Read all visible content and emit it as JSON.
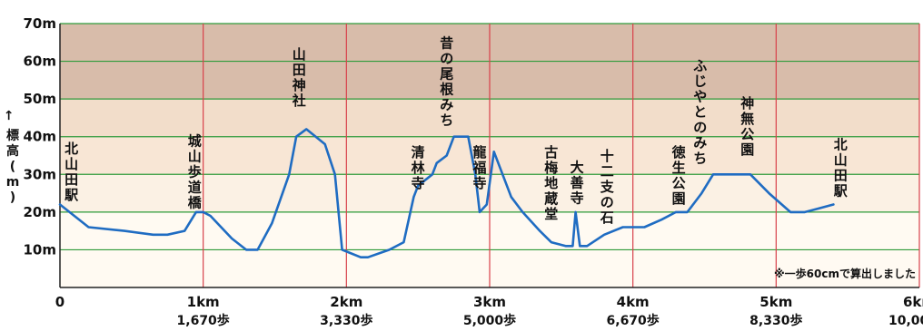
{
  "chart_data": {
    "type": "line",
    "title": "",
    "xlabel": "",
    "ylabel": "標高(m)",
    "ylabel_arrow": "→",
    "xlim": [
      0,
      6
    ],
    "ylim": [
      0,
      70
    ],
    "grid": true,
    "y_ticks": [
      {
        "value": 10,
        "label": "10m"
      },
      {
        "value": 20,
        "label": "20m"
      },
      {
        "value": 30,
        "label": "30m"
      },
      {
        "value": 40,
        "label": "40m"
      },
      {
        "value": 50,
        "label": "50m"
      },
      {
        "value": 60,
        "label": "60m"
      },
      {
        "value": 70,
        "label": "70m"
      }
    ],
    "x_ticks": [
      {
        "value": 0,
        "label": "0",
        "steps": ""
      },
      {
        "value": 1,
        "label": "1km",
        "steps": "1,670歩"
      },
      {
        "value": 2,
        "label": "2km",
        "steps": "3,330歩"
      },
      {
        "value": 3,
        "label": "3km",
        "steps": "5,000歩"
      },
      {
        "value": 4,
        "label": "4km",
        "steps": "6,670歩"
      },
      {
        "value": 5,
        "label": "5km",
        "steps": "8,330歩"
      },
      {
        "value": 6,
        "label": "6km",
        "steps": "10,000歩"
      }
    ],
    "bands": [
      {
        "from": 50,
        "to": 70,
        "color": "#d8bcaa"
      },
      {
        "from": 40,
        "to": 50,
        "color": "#f2ddca"
      },
      {
        "from": 30,
        "to": 40,
        "color": "#f8e6d5"
      },
      {
        "from": 20,
        "to": 30,
        "color": "#fbf1e4"
      },
      {
        "from": 0,
        "to": 20,
        "color": "#fffaf2"
      }
    ],
    "colors": {
      "line": "#1f6cc2",
      "vgrid": "#d8404a",
      "hgrid": "#2e9a3a",
      "axis": "#222222"
    },
    "series": [
      {
        "name": "",
        "x": [
          0,
          0.2,
          0.45,
          0.65,
          0.75,
          0.87,
          0.95,
          1.0,
          1.05,
          1.2,
          1.3,
          1.38,
          1.48,
          1.6,
          1.65,
          1.72,
          1.85,
          1.92,
          1.97,
          2.1,
          2.15,
          2.3,
          2.4,
          2.47,
          2.5,
          2.6,
          2.63,
          2.7,
          2.75,
          2.85,
          2.9,
          2.93,
          2.98,
          3.03,
          3.15,
          3.23,
          3.35,
          3.43,
          3.53,
          3.58,
          3.6,
          3.63,
          3.68,
          3.8,
          3.93,
          4.08,
          4.2,
          4.3,
          4.38,
          4.48,
          4.56,
          4.67,
          4.82,
          4.95,
          5.1,
          5.2,
          5.3,
          5.4
        ],
        "y": [
          22,
          16,
          15,
          14,
          14,
          15,
          20,
          20,
          19,
          13,
          10,
          10,
          17,
          30,
          40,
          42,
          38,
          30,
          10,
          8,
          8,
          10,
          12,
          24,
          27,
          30,
          33,
          35,
          40,
          40,
          30,
          20,
          22,
          36,
          24,
          20,
          15,
          12,
          11,
          11,
          20,
          11,
          11,
          14,
          16,
          16,
          18,
          20,
          20,
          25,
          30,
          30,
          30,
          25,
          20,
          20,
          21,
          22
        ]
      }
    ],
    "landmarks": [
      {
        "name": "北山田駅",
        "x": 0.08,
        "y_top": 39
      },
      {
        "name": "城山歩道橋",
        "x": 0.94,
        "y_top": 41
      },
      {
        "name": "山田神社",
        "x": 1.67,
        "y_top": 64
      },
      {
        "name": "清林寺",
        "x": 2.5,
        "y_top": 38
      },
      {
        "name": "昔の尾根みち",
        "x": 2.7,
        "y_top": 67
      },
      {
        "name": "龍福寺",
        "x": 2.93,
        "y_top": 38
      },
      {
        "name": "古梅地蔵堂",
        "x": 3.43,
        "y_top": 38
      },
      {
        "name": "大善寺",
        "x": 3.61,
        "y_top": 34
      },
      {
        "name": "十二支の石",
        "x": 3.82,
        "y_top": 37
      },
      {
        "name": "徳生公園",
        "x": 4.32,
        "y_top": 38
      },
      {
        "name": "ふじやとのみち",
        "x": 4.47,
        "y_top": 61
      },
      {
        "name": "神無公園",
        "x": 4.8,
        "y_top": 51
      },
      {
        "name": "北山田駅",
        "x": 5.45,
        "y_top": 40
      }
    ],
    "annotations": [
      "※一歩60cmで算出しました"
    ]
  }
}
